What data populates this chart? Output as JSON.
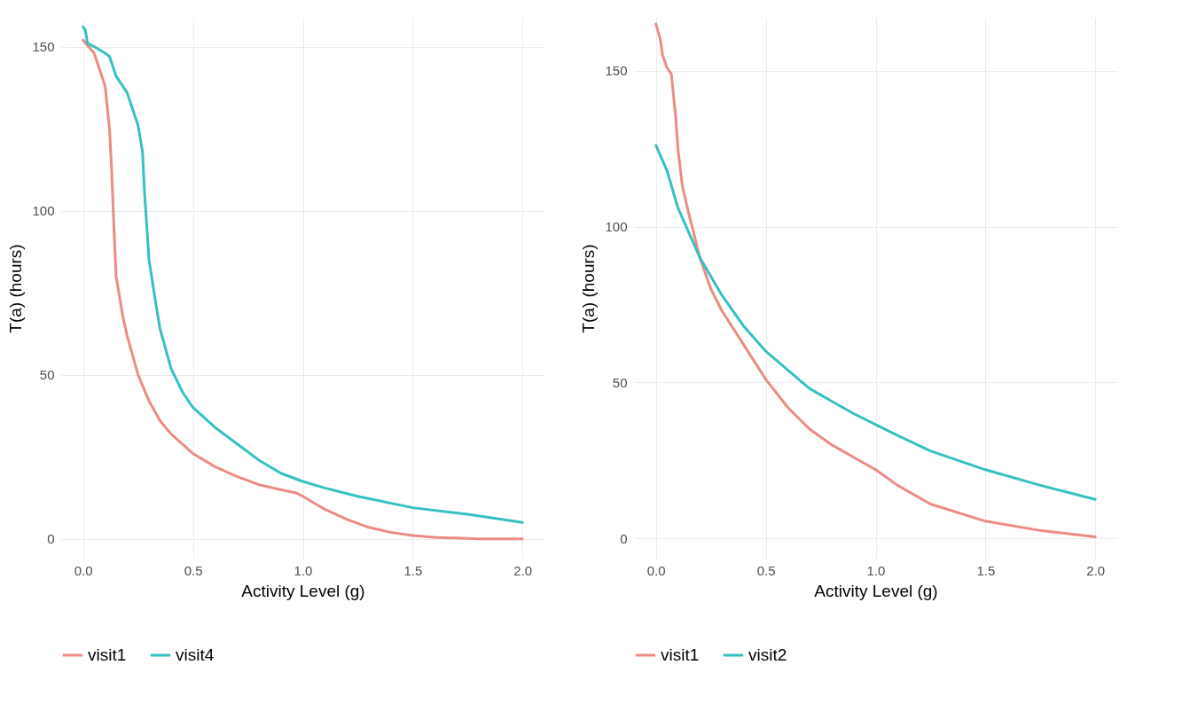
{
  "chart_data": [
    {
      "type": "line",
      "xlabel": "Activity Level (g)",
      "ylabel": "T(a) (hours)",
      "xlim": [
        -0.1,
        2.1
      ],
      "ylim": [
        -6,
        158.8
      ],
      "xticks": [
        {
          "value": 0,
          "label": "0.0"
        },
        {
          "value": 0.5,
          "label": "0.5"
        },
        {
          "value": 1,
          "label": "1.0"
        },
        {
          "value": 1.5,
          "label": "1.5"
        },
        {
          "value": 2,
          "label": "2.0"
        }
      ],
      "yticks": [
        0,
        50,
        100,
        150
      ],
      "grid": true,
      "legend": "bottom",
      "line_style": "solid",
      "series": [
        {
          "name": "visit1",
          "color": "#ec8b83",
          "x": [
            0,
            0.05,
            0.1,
            0.12,
            0.13,
            0.14,
            0.15,
            0.18,
            0.2,
            0.25,
            0.3,
            0.35,
            0.4,
            0.5,
            0.6,
            0.7,
            0.8,
            0.9,
            0.97,
            1.0,
            1.1,
            1.2,
            1.3,
            1.4,
            1.5,
            1.6,
            1.8,
            2.0
          ],
          "values": [
            152,
            148,
            138,
            125,
            112,
            95,
            80,
            68,
            62,
            50,
            42,
            36,
            32,
            26,
            22,
            19,
            16.5,
            15,
            14,
            13,
            9,
            6,
            3.5,
            2,
            1,
            0.5,
            0,
            0
          ]
        },
        {
          "name": "visit4",
          "color": "#35c0c2",
          "x": [
            0,
            0.01,
            0.02,
            0.05,
            0.1,
            0.12,
            0.15,
            0.2,
            0.25,
            0.27,
            0.28,
            0.29,
            0.3,
            0.33,
            0.35,
            0.4,
            0.45,
            0.5,
            0.6,
            0.7,
            0.8,
            0.9,
            1.0,
            1.1,
            1.25,
            1.5,
            1.75,
            2.0
          ],
          "values": [
            156,
            155,
            151,
            150,
            148,
            147,
            141,
            136,
            126,
            118,
            105,
            95,
            85,
            72,
            64,
            52,
            45,
            40,
            34,
            29,
            24,
            20,
            17.5,
            15.5,
            13,
            9.5,
            7.5,
            5
          ]
        }
      ]
    },
    {
      "type": "line",
      "xlabel": "Activity Level (g)",
      "ylabel": "T(a) (hours)",
      "xlim": [
        -0.1,
        2.1
      ],
      "ylim": [
        -6.5,
        167
      ],
      "xticks": [
        {
          "value": 0,
          "label": "0.0"
        },
        {
          "value": 0.5,
          "label": "0.5"
        },
        {
          "value": 1,
          "label": "1.0"
        },
        {
          "value": 1.5,
          "label": "1.5"
        },
        {
          "value": 2,
          "label": "2.0"
        }
      ],
      "yticks": [
        0,
        50,
        100,
        150
      ],
      "grid": true,
      "legend": "bottom",
      "line_style": "solid",
      "series": [
        {
          "name": "visit1",
          "color": "#ec8b83",
          "x": [
            0,
            0.02,
            0.03,
            0.05,
            0.07,
            0.09,
            0.1,
            0.12,
            0.15,
            0.2,
            0.25,
            0.3,
            0.4,
            0.5,
            0.6,
            0.7,
            0.8,
            0.9,
            1.0,
            1.1,
            1.25,
            1.5,
            1.75,
            2.0
          ],
          "values": [
            165,
            160,
            155,
            151,
            149,
            135,
            125,
            113,
            104,
            90,
            80,
            73,
            62,
            51,
            42,
            35,
            30,
            26,
            22,
            17,
            11,
            5.5,
            2.5,
            0.5
          ]
        },
        {
          "name": "visit2",
          "color": "#35c0c2",
          "x": [
            0,
            0.05,
            0.1,
            0.15,
            0.2,
            0.25,
            0.3,
            0.4,
            0.5,
            0.6,
            0.7,
            0.8,
            0.9,
            1.0,
            1.1,
            1.25,
            1.5,
            1.75,
            2.0
          ],
          "values": [
            126,
            118,
            106,
            98,
            90,
            84,
            78,
            68,
            60,
            54,
            48,
            44,
            40,
            36.5,
            33,
            28,
            22,
            17,
            12.5
          ]
        }
      ]
    }
  ]
}
